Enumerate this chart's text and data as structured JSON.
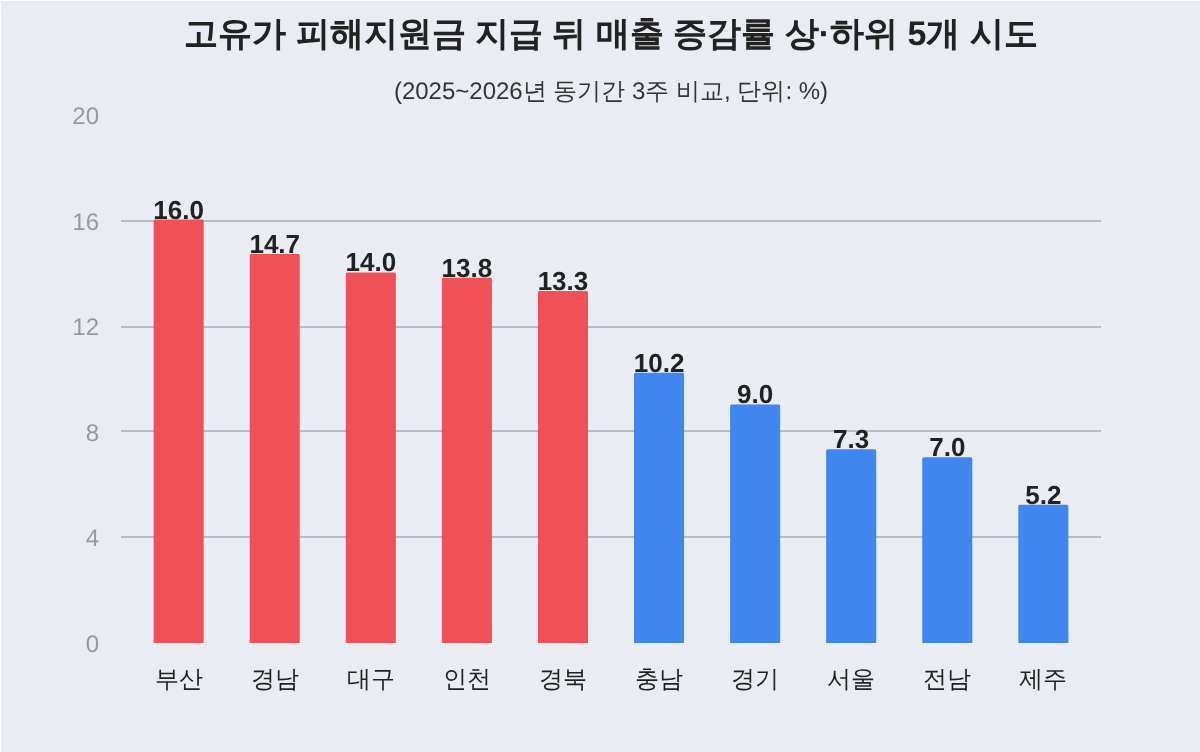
{
  "chart_data": {
    "type": "bar",
    "title": "고유가 피해지원금 지급 뒤 매출 증감률 상·하위 5개 시도",
    "subtitle": "(2025~2026년 동기간 3주 비교, 단위: %)",
    "categories": [
      "부산",
      "경남",
      "대구",
      "인천",
      "경북",
      "충남",
      "경기",
      "서울",
      "전남",
      "제주"
    ],
    "values": [
      16.0,
      14.7,
      14.0,
      13.8,
      13.3,
      10.2,
      9.0,
      7.3,
      7.0,
      5.2
    ],
    "value_labels": [
      "16.0",
      "14.7",
      "14.0",
      "13.8",
      "13.3",
      "10.2",
      "9.0",
      "7.3",
      "7.0",
      "5.2"
    ],
    "colors": [
      "#ee5257",
      "#ee5257",
      "#ee5257",
      "#ee5257",
      "#ee5257",
      "#3f86ee",
      "#3f86ee",
      "#3f86ee",
      "#3f86ee",
      "#3f86ee"
    ],
    "ylim": [
      0,
      20
    ],
    "yticks": [
      0,
      4,
      8,
      12,
      16,
      20
    ],
    "grid": "y"
  }
}
